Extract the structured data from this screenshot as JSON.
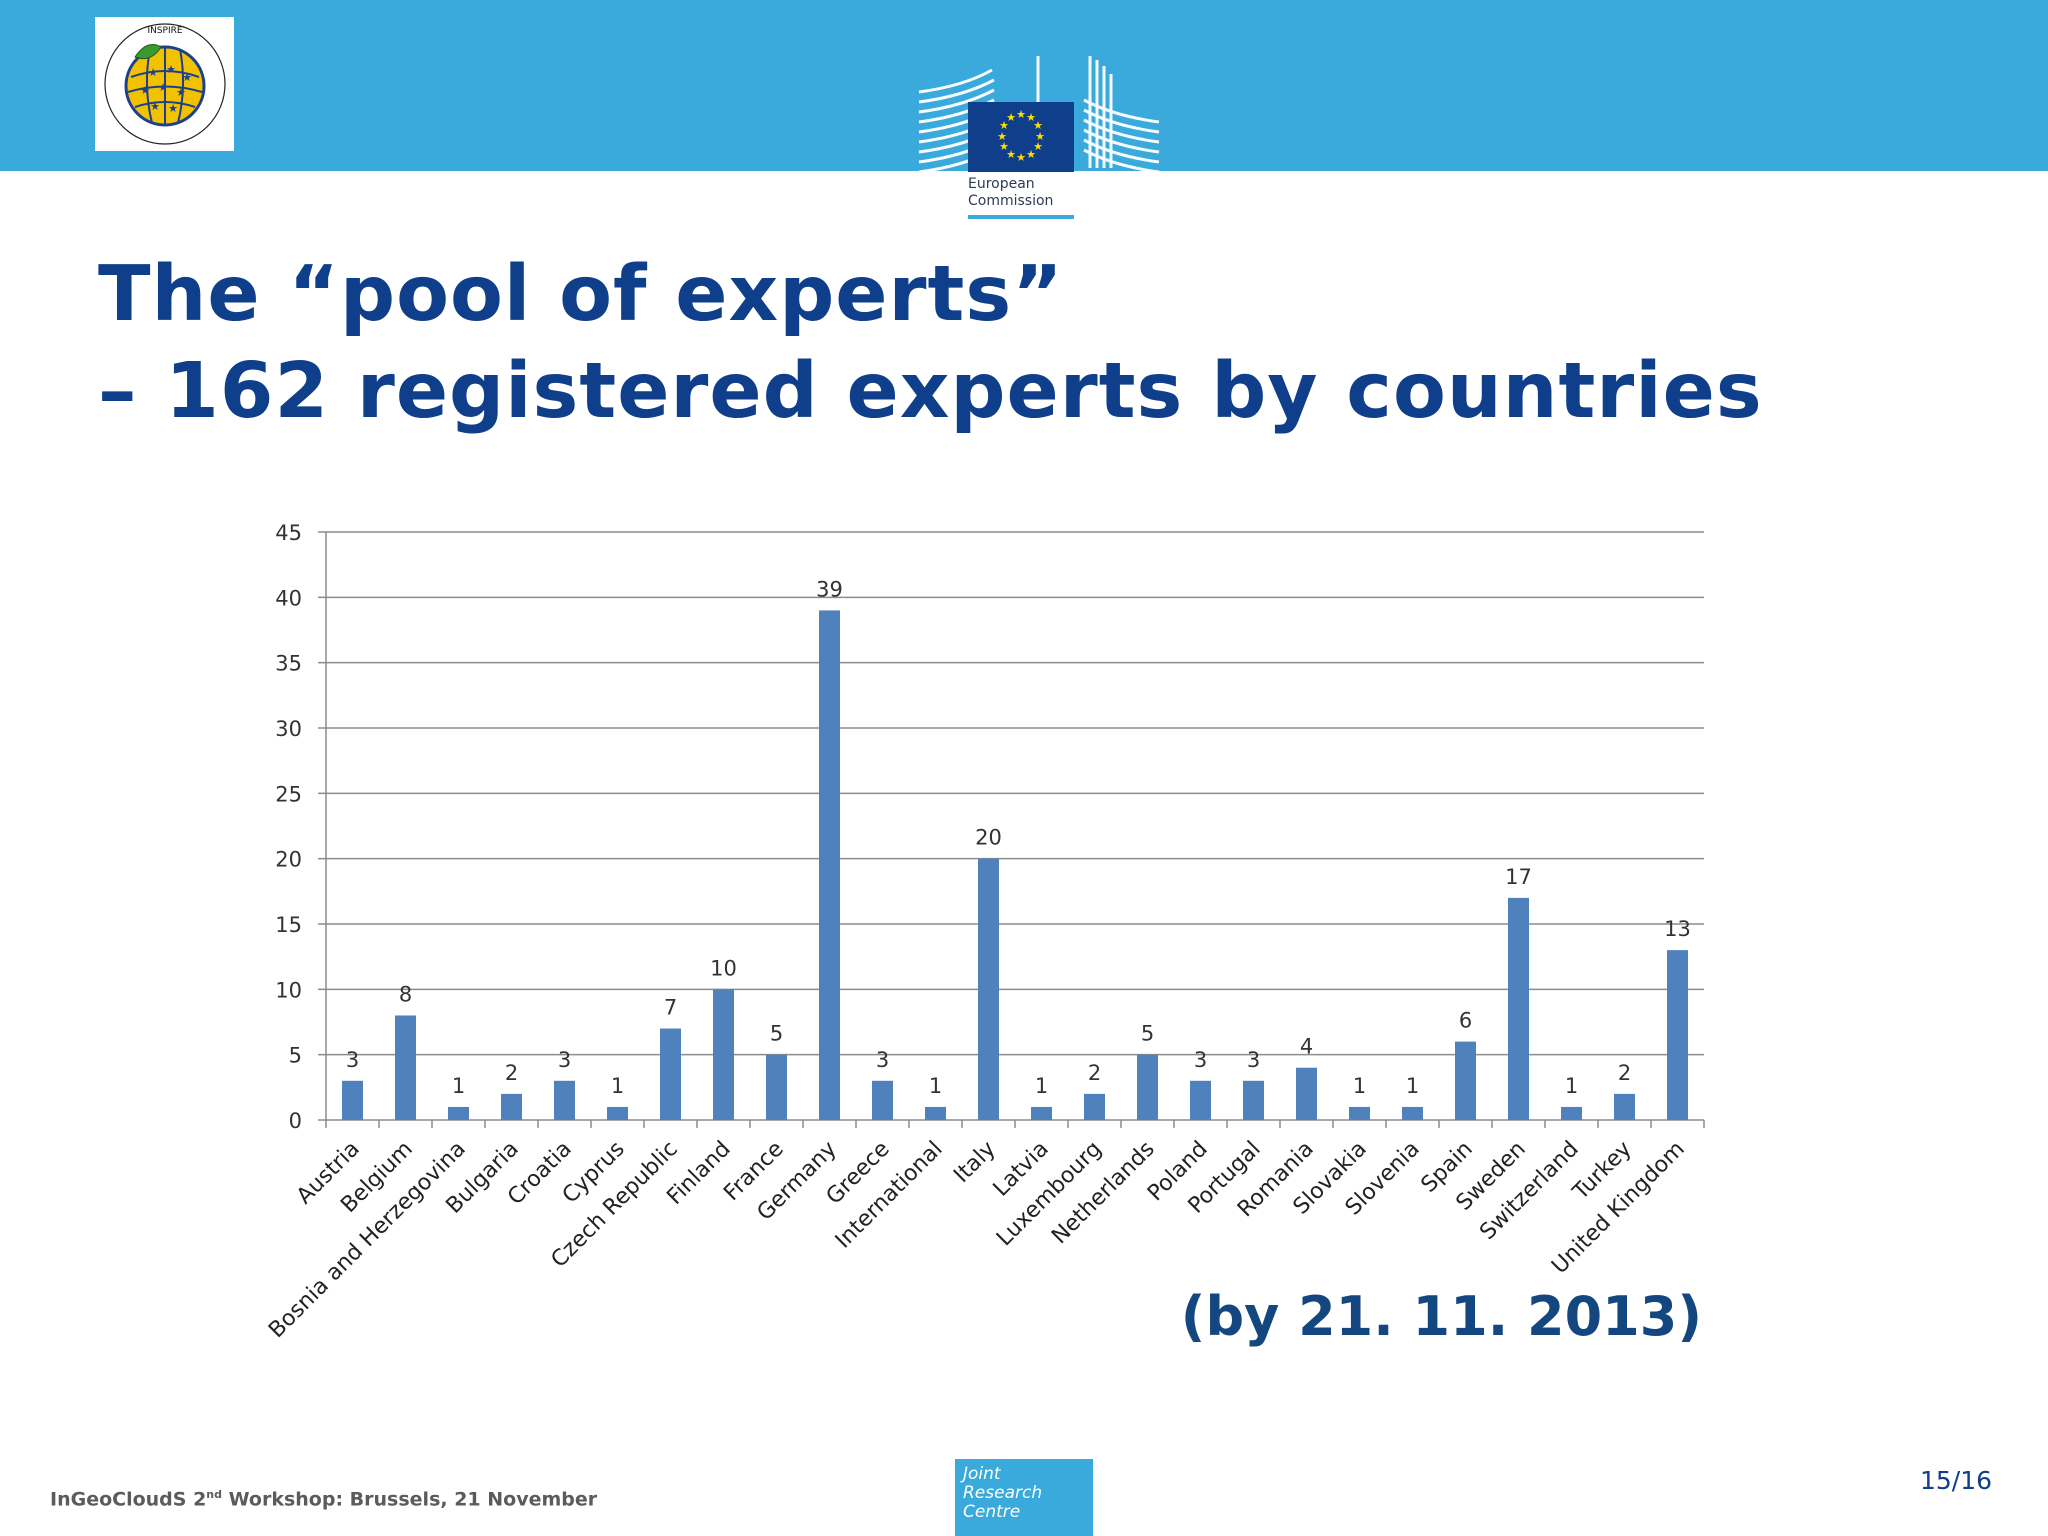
{
  "header": {
    "inspire_logo_text": "INSPIRE · Infrastructure for Spatial Information in Europe",
    "ec_label_line1": "European",
    "ec_label_line2": "Commission",
    "colors": {
      "band": "#3aa9dc",
      "eu_flag": "#0f3e8b",
      "eu_stars": "#ffdd00"
    }
  },
  "title": {
    "line1": "The “pool of experts”",
    "line2": "– 162 registered experts by countries"
  },
  "chart_data": {
    "type": "bar",
    "title": "",
    "xlabel": "",
    "ylabel": "",
    "ylim": [
      0,
      45
    ],
    "yticks": [
      0,
      5,
      10,
      15,
      20,
      25,
      30,
      35,
      40,
      45
    ],
    "grid": true,
    "bar_color": "#4f81bd",
    "categories": [
      "Austria",
      "Belgium",
      "Bosnia and Herzegovina",
      "Bulgaria",
      "Croatia",
      "Cyprus",
      "Czech Republic",
      "Finland",
      "France",
      "Germany",
      "Greece",
      "International",
      "Italy",
      "Latvia",
      "Luxembourg",
      "Netherlands",
      "Poland",
      "Portugal",
      "Romania",
      "Slovakia",
      "Slovenia",
      "Spain",
      "Sweden",
      "Switzerland",
      "Turkey",
      "United Kingdom"
    ],
    "values": [
      3,
      8,
      1,
      2,
      3,
      1,
      7,
      10,
      5,
      39,
      3,
      1,
      20,
      1,
      2,
      5,
      3,
      3,
      4,
      1,
      1,
      6,
      17,
      1,
      2,
      13
    ]
  },
  "date_note": "(by 21. 11. 2013)",
  "footer": {
    "text_before": "InGeoCloudS 2",
    "text_sup": "nd",
    "text_after": " Workshop: Brussels, 21 November",
    "jrc_line1": "Joint",
    "jrc_line2": "Research",
    "jrc_line3": "Centre",
    "page": "15/16"
  }
}
